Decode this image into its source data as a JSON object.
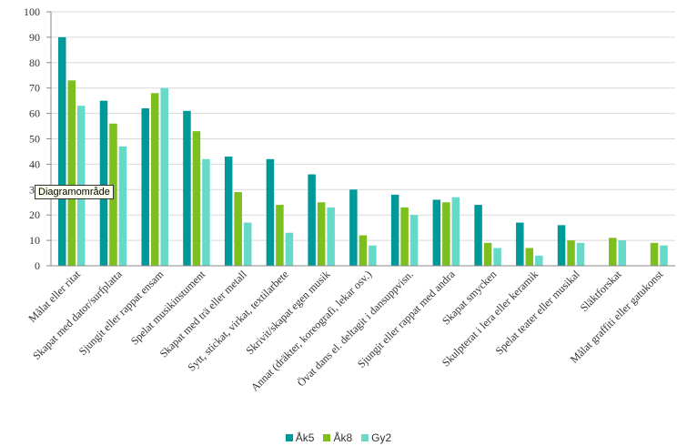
{
  "chart_data": {
    "type": "bar",
    "title": "",
    "xlabel": "",
    "ylabel": "",
    "ylim": [
      0,
      100
    ],
    "yticks": [
      0,
      10,
      20,
      30,
      40,
      50,
      60,
      70,
      80,
      90,
      100
    ],
    "grid": true,
    "legend_position": "bottom",
    "categories": [
      "Målat eller ritat",
      "Skapat med dator/surfplatta",
      "Sjungit eller rappat ensam",
      "Spelat musikinstument",
      "Skapat med trä eller metall",
      "Sytt, stickat, virkat, textilarbete",
      "Skrivit/skapat egen musik",
      "Annat (dräkter, koreografi, lekar osv.)",
      "Övat dans el. deltagit i dansuppvisn.",
      "Sjungit eller rappat med andra",
      "Skapat smycken",
      "Skulpterat i lera eller keramik",
      "Spelat teater eller musikal",
      "Släktforskat",
      "Målat graffiti eller gatukonst"
    ],
    "series": [
      {
        "name": "Åk5",
        "color": "#009999",
        "values": [
          90,
          65,
          62,
          61,
          43,
          42,
          36,
          30,
          28,
          26,
          24,
          17,
          16,
          null,
          null
        ]
      },
      {
        "name": "Åk8",
        "color": "#7cbf1f",
        "values": [
          73,
          56,
          68,
          53,
          29,
          24,
          25,
          12,
          23,
          25,
          9,
          7,
          10,
          11,
          9
        ]
      },
      {
        "name": "Gy2",
        "color": "#66d9c8",
        "values": [
          63,
          47,
          70,
          42,
          17,
          13,
          23,
          8,
          20,
          27,
          7,
          4,
          9,
          10,
          8
        ]
      }
    ]
  },
  "tooltip": {
    "text": "Diagramområde"
  },
  "colors": {
    "axis": "#888888",
    "gridline": "#d9d9d9",
    "text": "#333333"
  }
}
